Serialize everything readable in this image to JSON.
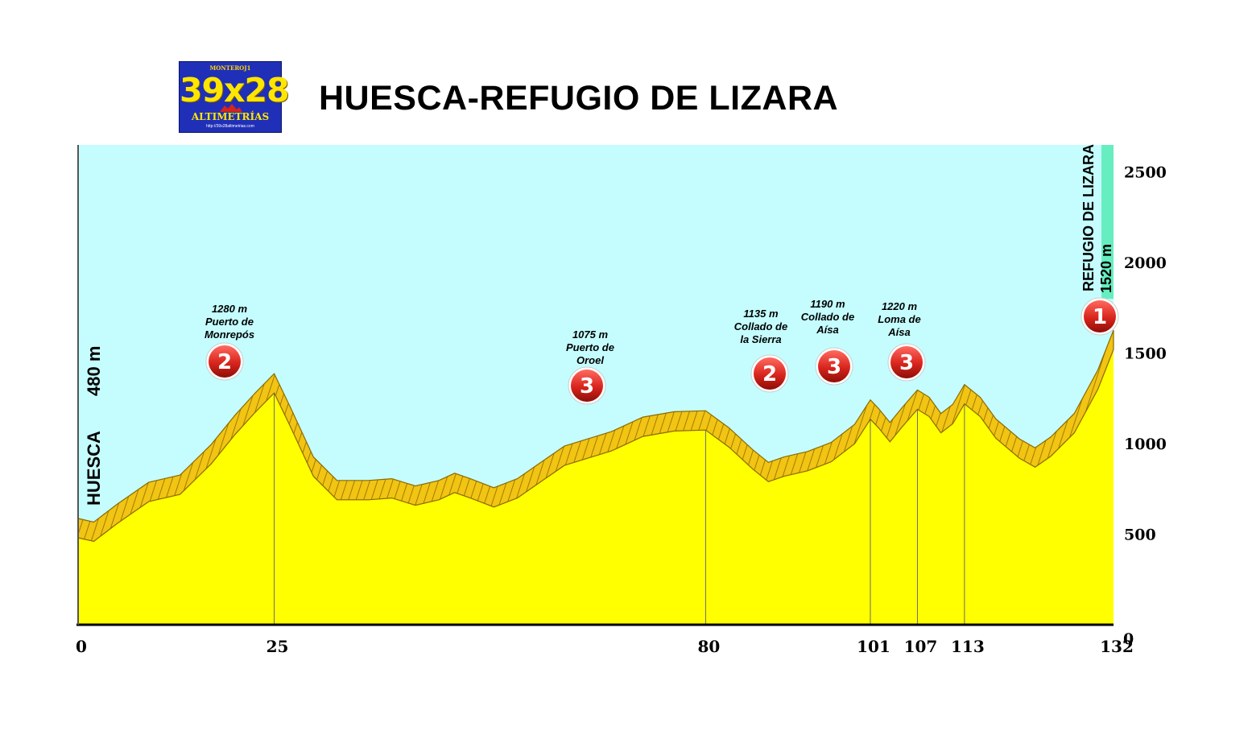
{
  "logo": {
    "top_text": "MONTEROJ1",
    "main_text": "39x28",
    "sub_text": "ALTIMETRÍAS",
    "url_text": "http://39x28altimetrias.com"
  },
  "title": "HUESCA-REFUGIO DE LIZARA",
  "colors": {
    "sky": "#c5fdff",
    "terrain": "#ffff00",
    "band": "#f2c413",
    "band_dark": "#8a6a00",
    "badge": "#d8241c",
    "right_strip": "#66eec0"
  },
  "chart_data": {
    "type": "area",
    "title": "HUESCA-REFUGIO DE LIZARA",
    "xlabel": "",
    "ylabel": "",
    "xlim": [
      0,
      132
    ],
    "ylim": [
      0,
      2650
    ],
    "x_ticks": [
      0,
      25,
      80,
      101,
      107,
      113,
      132
    ],
    "y_ticks": [
      0,
      500,
      1000,
      1500,
      2000,
      2500
    ],
    "grid": false,
    "profile": [
      [
        0,
        480
      ],
      [
        2,
        460
      ],
      [
        5,
        560
      ],
      [
        9,
        680
      ],
      [
        13,
        720
      ],
      [
        17,
        890
      ],
      [
        20,
        1050
      ],
      [
        22.5,
        1170
      ],
      [
        25,
        1280
      ],
      [
        27,
        1100
      ],
      [
        30,
        820
      ],
      [
        33,
        690
      ],
      [
        37,
        690
      ],
      [
        40,
        700
      ],
      [
        43,
        660
      ],
      [
        46,
        690
      ],
      [
        48,
        730
      ],
      [
        50,
        700
      ],
      [
        53,
        650
      ],
      [
        56,
        700
      ],
      [
        59,
        790
      ],
      [
        62,
        880
      ],
      [
        65,
        920
      ],
      [
        68,
        960
      ],
      [
        72,
        1040
      ],
      [
        76,
        1070
      ],
      [
        80,
        1075
      ],
      [
        83,
        980
      ],
      [
        86,
        860
      ],
      [
        88,
        790
      ],
      [
        90,
        820
      ],
      [
        93,
        850
      ],
      [
        96,
        900
      ],
      [
        99,
        1000
      ],
      [
        101,
        1135
      ],
      [
        102,
        1090
      ],
      [
        103.5,
        1010
      ],
      [
        105,
        1090
      ],
      [
        107,
        1190
      ],
      [
        108.5,
        1150
      ],
      [
        110,
        1060
      ],
      [
        111.5,
        1110
      ],
      [
        113,
        1220
      ],
      [
        115,
        1150
      ],
      [
        117,
        1030
      ],
      [
        120,
        920
      ],
      [
        122,
        870
      ],
      [
        124,
        930
      ],
      [
        127,
        1060
      ],
      [
        130,
        1300
      ],
      [
        132,
        1520
      ]
    ],
    "x_tick_labels": [
      "0",
      "25",
      "80",
      "101",
      "107",
      "113",
      "132"
    ],
    "y_tick_labels": [
      "0",
      "500",
      "1000",
      "1500",
      "2000",
      "2500"
    ],
    "start_label": "HUESCA",
    "start_altitude_label": "480 m",
    "end_label": "REFUGIO DE LIZARA",
    "end_altitude_label": "1520 m",
    "climbs": [
      {
        "km": 25,
        "lines": [
          "1280 m",
          "Puerto de",
          "Monrepós"
        ],
        "category": "2"
      },
      {
        "km": 80,
        "lines": [
          "1075 m",
          "Puerto de",
          "Oroel"
        ],
        "category": "3"
      },
      {
        "km": 101,
        "lines": [
          "1135 m",
          "Collado de",
          "la Sierra"
        ],
        "category": "2"
      },
      {
        "km": 107,
        "lines": [
          "1190 m",
          "Collado de",
          "Aísa"
        ],
        "category": "3"
      },
      {
        "km": 113,
        "lines": [
          "1220 m",
          "Loma de",
          "Aísa"
        ],
        "category": "3"
      },
      {
        "km": 132,
        "lines": [],
        "category": "1"
      }
    ]
  }
}
